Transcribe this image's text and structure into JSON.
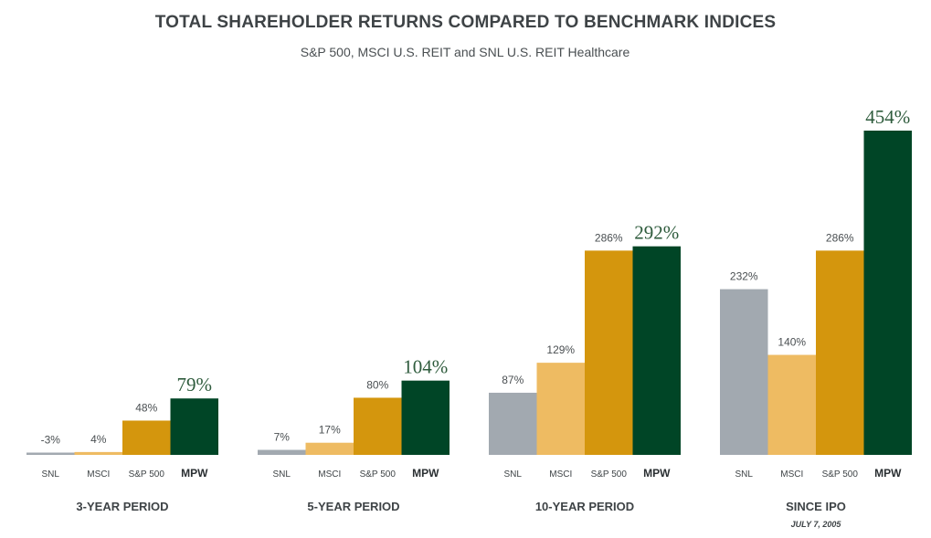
{
  "chart_data": {
    "type": "bar",
    "title": "TOTAL SHAREHOLDER RETURNS COMPARED TO BENCHMARK INDICES",
    "subtitle": "S&P 500, MSCI U.S. REIT and SNL U.S. REIT Healthcare",
    "categories": [
      "SNL",
      "MSCI",
      "S&P 500",
      "MPW"
    ],
    "groups": [
      {
        "label": "3-YEAR PERIOD",
        "sublabel": "",
        "values": [
          -3,
          4,
          48,
          79
        ],
        "labels": [
          "-3%",
          "4%",
          "48%",
          "79%"
        ]
      },
      {
        "label": "5-YEAR PERIOD",
        "sublabel": "",
        "values": [
          7,
          17,
          80,
          104
        ],
        "labels": [
          "7%",
          "17%",
          "80%",
          "104%"
        ]
      },
      {
        "label": "10-YEAR PERIOD",
        "sublabel": "",
        "values": [
          87,
          129,
          286,
          292
        ],
        "labels": [
          "87%",
          "129%",
          "286%",
          "292%"
        ]
      },
      {
        "label": "SINCE IPO",
        "sublabel": "JULY 7, 2005",
        "values": [
          232,
          140,
          286,
          454
        ],
        "labels": [
          "232%",
          "140%",
          "286%",
          "454%"
        ]
      }
    ],
    "colors": [
      "#a2a9b0",
      "#eebb62",
      "#d4960d",
      "#004526"
    ],
    "highlight_series": "MPW",
    "ylim": [
      0,
      454
    ],
    "grid": false
  }
}
